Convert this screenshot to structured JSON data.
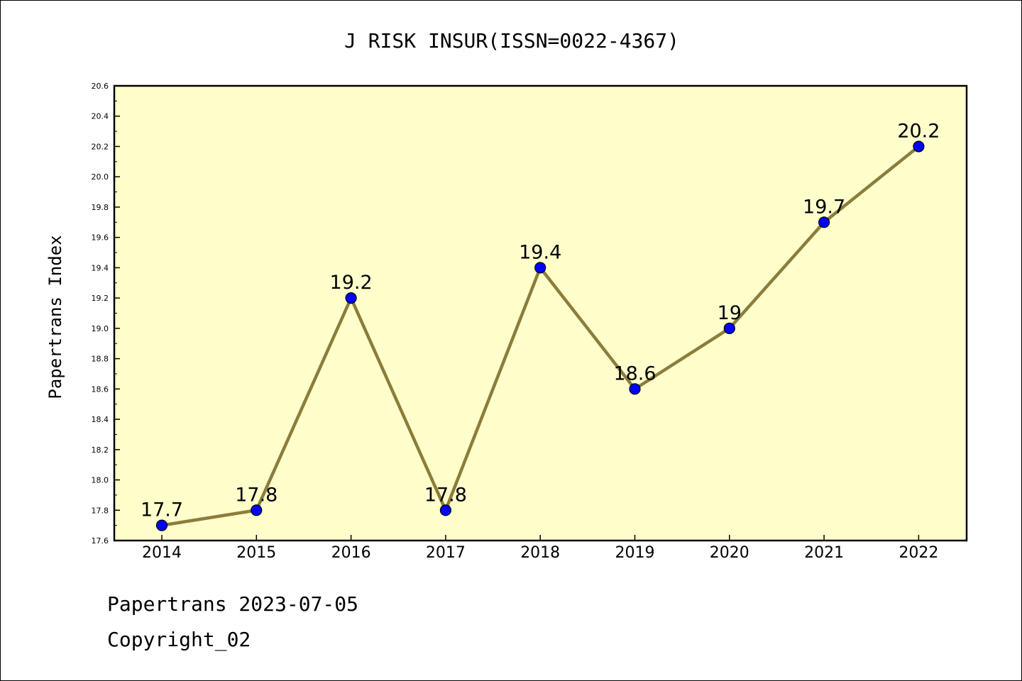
{
  "chart_data": {
    "type": "line",
    "title": "J RISK INSUR(ISSN=0022-4367)",
    "xlabel": "",
    "ylabel": "Papertrans Index",
    "categories": [
      "2014",
      "2015",
      "2016",
      "2017",
      "2018",
      "2019",
      "2020",
      "2021",
      "2022"
    ],
    "series": [
      {
        "values": [
          17.7,
          17.8,
          19.2,
          17.8,
          19.4,
          18.6,
          19.0,
          19.7,
          20.2
        ],
        "data_labels": [
          "17.7",
          "17.8",
          "19.2",
          "17.8",
          "19.4",
          "18.6",
          "19",
          "19.7",
          "20.2"
        ]
      }
    ],
    "ylim": [
      17.6,
      20.6
    ],
    "yticks": [
      "17.6",
      "17.8",
      "18.0",
      "18.2",
      "18.4",
      "18.6",
      "18.8",
      "19.0",
      "19.2",
      "19.4",
      "19.6",
      "19.8",
      "20.0",
      "20.2",
      "20.4",
      "20.6"
    ],
    "grid": false,
    "legend": "none",
    "colors": {
      "plot_background": "#ffffcc",
      "line": "#8b7d3a",
      "marker": "#0000ff",
      "axes": "#000000"
    }
  },
  "footer": {
    "date_line": "Papertrans 2023-07-05",
    "copyright_line": "Copyright_02"
  }
}
